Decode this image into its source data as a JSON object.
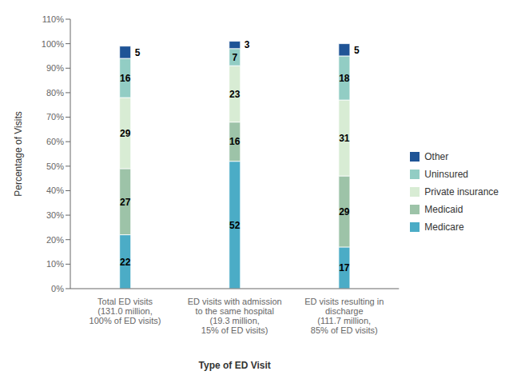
{
  "chart_data": {
    "type": "bar",
    "stacked": true,
    "data_labels": true,
    "legend": "right",
    "grid": false,
    "xlabel": "Type of ED Visit",
    "ylabel": "Percentage of Visits",
    "categories": [
      "Total ED visits\n(131.0 million,\n100% of ED visits)",
      "ED visits with admission\nto the same hospital\n(19.3 million,\n15% of ED visits)",
      "ED visits resulting in\ndischarge\n(111.7 million,\n85% of ED visits)"
    ],
    "series": [
      {
        "name": "Medicare",
        "color": "#4bacc6",
        "values": [
          22,
          52,
          17
        ]
      },
      {
        "name": "Medicaid",
        "color": "#9dc3a8",
        "values": [
          27,
          16,
          29
        ]
      },
      {
        "name": "Private insurance",
        "color": "#d8ecd4",
        "values": [
          29,
          23,
          31
        ]
      },
      {
        "name": "Uninsured",
        "color": "#92cdc4",
        "values": [
          16,
          7,
          18
        ]
      },
      {
        "name": "Other",
        "color": "#1f5496",
        "values": [
          5,
          3,
          5
        ]
      }
    ],
    "ylim": [
      0,
      110
    ],
    "yticks": [
      {
        "value": 0,
        "label": "0%"
      },
      {
        "value": 10,
        "label": "10%"
      },
      {
        "value": 20,
        "label": "20%"
      },
      {
        "value": 30,
        "label": "30%"
      },
      {
        "value": 40,
        "label": "40%"
      },
      {
        "value": 50,
        "label": "50%"
      },
      {
        "value": 60,
        "label": "60%"
      },
      {
        "value": 70,
        "label": "70%"
      },
      {
        "value": 80,
        "label": "80%"
      },
      {
        "value": 90,
        "label": "90%"
      },
      {
        "value": 100,
        "label": "100%"
      },
      {
        "value": 110,
        "label": "110%"
      }
    ]
  }
}
